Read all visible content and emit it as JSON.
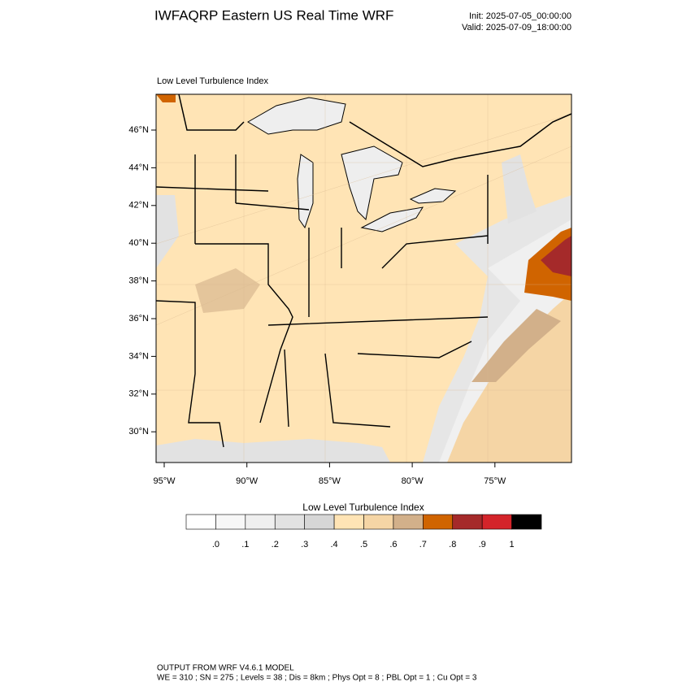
{
  "header": {
    "title": "IWFAQRP Eastern US Real Time WRF",
    "init": "Init: 2025-07-05_00:00:00",
    "valid": "Valid: 2025-07-09_18:00:00"
  },
  "map": {
    "subtitle": "Low Level Turbulence Index",
    "lat_labels": [
      "46°N",
      "44°N",
      "42°N",
      "40°N",
      "38°N",
      "36°N",
      "34°N",
      "32°N",
      "30°N"
    ],
    "lon_labels": [
      "95°W",
      "90°W",
      "85°W",
      "80°W",
      "75°W"
    ]
  },
  "colorbar": {
    "title": "Low Level Turbulence Index",
    "colors": [
      "#ffffff",
      "#f7f7f7",
      "#efefef",
      "#e2e2e2",
      "#d6d6d6",
      "#ffe4b5",
      "#f5d5a5",
      "#d2b08a",
      "#d06400",
      "#a52a2a",
      "#d4242a",
      "#000000"
    ],
    "labels": [
      ".0",
      ".1",
      ".2",
      ".3",
      ".4",
      ".5",
      ".6",
      ".7",
      ".8",
      ".9",
      "1"
    ]
  },
  "footer": {
    "line1": "OUTPUT FROM WRF V4.6.1 MODEL",
    "line2": "WE = 310 ; SN = 275 ; Levels = 38 ; Dis = 8km ; Phys Opt = 8 ; PBL Opt = 1 ; Cu Opt = 3"
  }
}
